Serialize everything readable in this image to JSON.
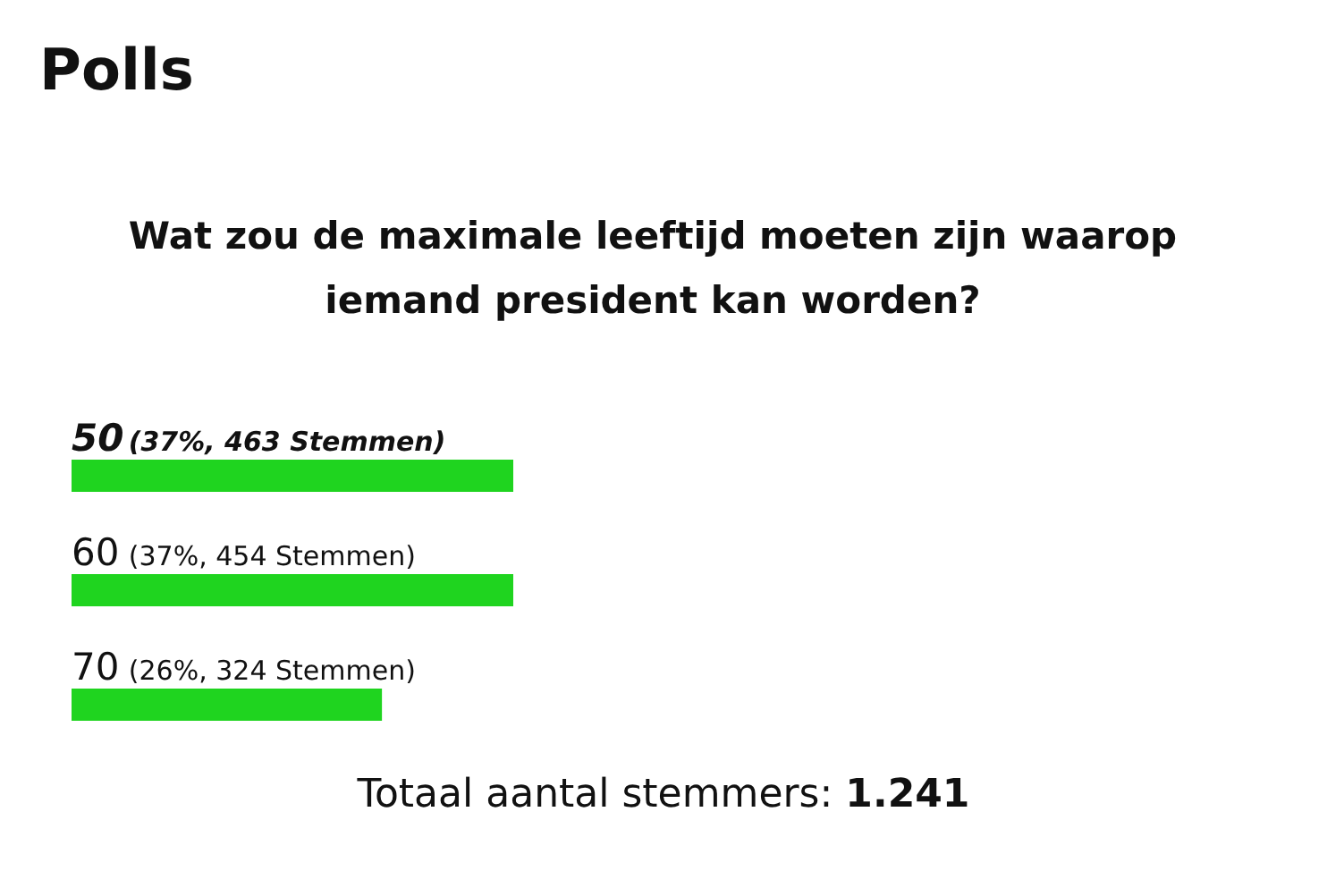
{
  "chart_data": {
    "type": "bar",
    "orientation": "horizontal",
    "title": "Polls",
    "subtitle": "Wat zou de maximale leeftijd moeten zijn waarop iemand president kan worden?",
    "categories": [
      "50",
      "60",
      "70"
    ],
    "values": [
      37,
      37,
      26
    ],
    "value_labels": [
      "(37%, 463 Stemmen)",
      "(37%, 454 Stemmen)",
      "(26%, 324 Stemmen)"
    ],
    "color": "#1fd41f",
    "annotations": [
      "Totaal aantal stemmers: 1.241"
    ]
  }
}
